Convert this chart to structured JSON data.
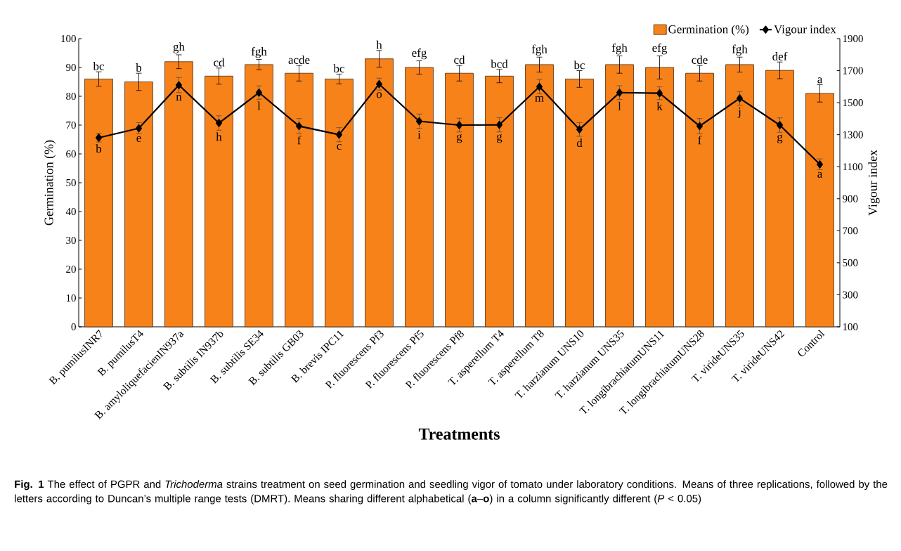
{
  "chart_data": {
    "type": "bar",
    "categories": [
      "B. pumilusINR7",
      "B. pumilusT4",
      "B. amyloliquefacienIN937a",
      "B. subtilis IN937b",
      "B. subtilis SE34",
      "B. subtilis GB03",
      "B. brevis IPC11",
      "P. fluorescens Pf3",
      "P. fluorescens Pf5",
      "P. fluorescens Pf8",
      "T. asperellum T4",
      "T. asperellum T8",
      "T. harzianum UNS10",
      "T. harzianum UNS35",
      "T. longibrachiatumUNS11",
      "T. longibrachiatumUNS28",
      "T. virideUNS35",
      "T. virideUNS42",
      "Control"
    ],
    "xlabel": "Treatments",
    "ylabel": "Germination (%)",
    "y2label": "Vigour index",
    "series": [
      {
        "name": "Germination (%)",
        "color": "#f8821a",
        "values": [
          86,
          85,
          92,
          87,
          91,
          88,
          86,
          93,
          90,
          88,
          87,
          91,
          86,
          91,
          90,
          88,
          91,
          89,
          81
        ],
        "errors": [
          2.5,
          3,
          2.4,
          2.8,
          1.8,
          2.7,
          1.7,
          2.9,
          2.3,
          2.7,
          2.3,
          2.6,
          2.9,
          3,
          4,
          2.7,
          2.6,
          2.9,
          3
        ],
        "value_labels": [
          "bc",
          "b",
          "gh",
          "cd",
          "fgh",
          "acde",
          "bc",
          "h",
          "efg",
          "cd",
          "bcd",
          "fgh",
          "bc",
          "fgh",
          "efg",
          "cde",
          "fgh",
          "def",
          "a"
        ]
      },
      {
        "name": "Vigour index",
        "type": "line",
        "axis": "y2",
        "color": "#000000",
        "values": [
          1281,
          1340,
          1610,
          1373,
          1563,
          1354,
          1300,
          1616,
          1384,
          1360,
          1362,
          1600,
          1333,
          1563,
          1559,
          1354,
          1527,
          1360,
          1115
        ],
        "errors": [
          27,
          35,
          47,
          45,
          42,
          47,
          44,
          37,
          45,
          43,
          45,
          45,
          43,
          43,
          40,
          47,
          43,
          45,
          34
        ],
        "value_labels": [
          "b",
          "e",
          "n",
          "h",
          "l",
          "f",
          "c",
          "o",
          "i",
          "g",
          "g",
          "m",
          "d",
          "l",
          "k",
          "f",
          "j",
          "g",
          "a"
        ]
      }
    ],
    "ylim": [
      0,
      100
    ],
    "yticks": [
      0,
      10,
      20,
      30,
      40,
      50,
      60,
      70,
      80,
      90,
      100
    ],
    "y2lim": [
      100,
      1900
    ],
    "y2ticks": [
      100,
      300,
      500,
      700,
      900,
      1100,
      1300,
      1500,
      1700,
      1900
    ],
    "marker": "diamond",
    "grid": false,
    "legend": "top right",
    "annotations": [
      "**Fig. 1** The effect of PGPR and *Trichoderma* strains treatment on seed germination and seedling vigor of tomato under laboratory conditions. Means of three replications, followed by the letters according to Duncan’s multiple range tests (DMRT). Means sharing different alphabetical (**a**–**o**) in a column significantly different (*P* < 0.05)"
    ]
  }
}
